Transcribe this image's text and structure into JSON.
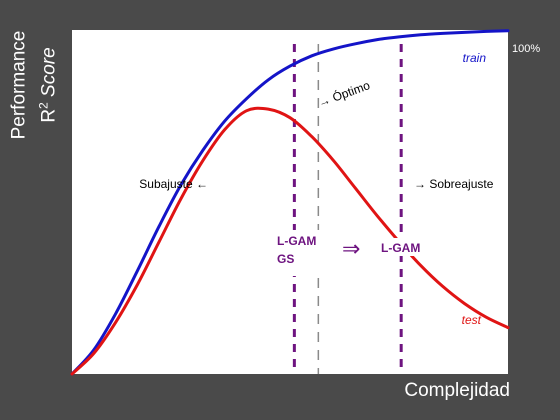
{
  "chart_data": {
    "type": "line",
    "title": "",
    "xlabel": "Complejidad",
    "ylabel": {
      "line1": "Performance",
      "line2_prefix": "R",
      "line2_sup": "2",
      "line2_suffix": "Score"
    },
    "xlim": [
      0,
      1
    ],
    "ylim": [
      0,
      1
    ],
    "y_tick_label": "100%",
    "grid": false,
    "series": [
      {
        "name": "train",
        "color": "#1414c8",
        "x": [
          0,
          0.05,
          0.1,
          0.15,
          0.2,
          0.25,
          0.3,
          0.35,
          0.4,
          0.45,
          0.5,
          0.55,
          0.6,
          0.65,
          0.7,
          0.75,
          0.8,
          0.85,
          0.9,
          0.95,
          1.0
        ],
        "y": [
          0,
          0.07,
          0.175,
          0.3,
          0.43,
          0.55,
          0.65,
          0.735,
          0.8,
          0.855,
          0.895,
          0.925,
          0.945,
          0.96,
          0.972,
          0.98,
          0.986,
          0.99,
          0.993,
          0.996,
          0.998
        ]
      },
      {
        "name": "test",
        "color": "#e01414",
        "x": [
          0,
          0.05,
          0.1,
          0.15,
          0.2,
          0.25,
          0.3,
          0.35,
          0.4,
          0.45,
          0.5,
          0.55,
          0.6,
          0.65,
          0.7,
          0.75,
          0.8,
          0.85,
          0.9,
          0.95,
          1.0
        ],
        "y": [
          0,
          0.06,
          0.15,
          0.26,
          0.385,
          0.51,
          0.62,
          0.71,
          0.765,
          0.77,
          0.745,
          0.69,
          0.62,
          0.54,
          0.46,
          0.385,
          0.315,
          0.255,
          0.205,
          0.165,
          0.135
        ]
      }
    ],
    "vlines": [
      {
        "x": 0.51,
        "style": "dashed",
        "color": "#6e1480"
      },
      {
        "x": 0.565,
        "style": "dashed",
        "color": "#8a8a8a"
      },
      {
        "x": 0.755,
        "style": "dashed",
        "color": "#6e1480"
      }
    ],
    "annotations": {
      "optimo": "→ Óptimo",
      "subajuste": "Subajuste ←",
      "sobreajuste": "→ Sobreajuste",
      "lgam_gs_line1": "L-GAM",
      "lgam_gs_line2": "GS",
      "arrow": "⇒",
      "lgam": "L-GAM"
    },
    "annotation_color": "#6e1480"
  }
}
